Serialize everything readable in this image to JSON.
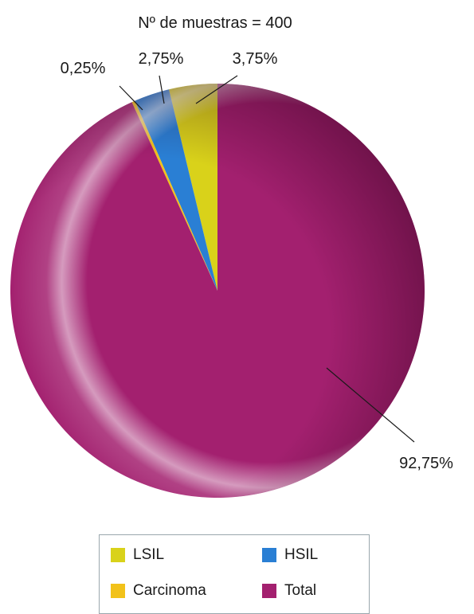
{
  "chart_data": {
    "type": "pie",
    "title": "Nº de muestras = 400",
    "slices": [
      {
        "name": "LSIL",
        "value": 3.75,
        "label": "3,75%",
        "color": "#d9d21a"
      },
      {
        "name": "HSIL",
        "value": 2.75,
        "label": "2,75%",
        "color": "#2a7fd4"
      },
      {
        "name": "Carcinoma",
        "value": 0.25,
        "label": "0,25%",
        "color": "#f2c21a"
      },
      {
        "name": "Total",
        "value": 92.75,
        "label": "92,75%",
        "color": "#a3206f"
      }
    ],
    "start_angle_deg": 0,
    "direction": "counter-clockwise",
    "legend": {
      "placement": "bottom",
      "items": [
        {
          "label": "LSIL",
          "color": "#d9d21a"
        },
        {
          "label": "HSIL",
          "color": "#2a7fd4"
        },
        {
          "label": "Carcinoma",
          "color": "#f2c21a"
        },
        {
          "label": "Total",
          "color": "#a3206f"
        }
      ]
    }
  }
}
